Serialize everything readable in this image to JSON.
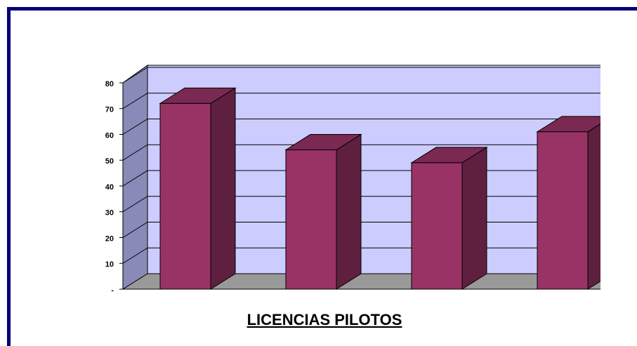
{
  "chart_data": {
    "type": "bar3d",
    "title": "LICENCIAS PILOTOS",
    "categories": [
      null,
      null,
      null,
      null
    ],
    "values": [
      72,
      54,
      49,
      61
    ],
    "color": "#993366",
    "ylim": [
      0,
      80
    ],
    "yticks": [
      {
        "value": 0,
        "label": "-"
      },
      10,
      20,
      30,
      40,
      50,
      60,
      70,
      80
    ],
    "grid": true
  }
}
